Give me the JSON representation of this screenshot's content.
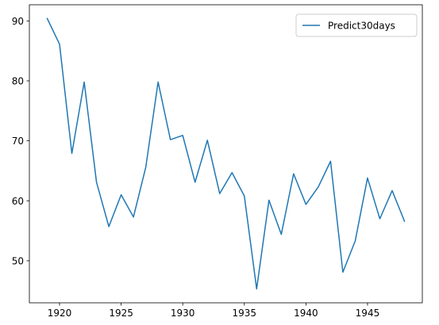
{
  "chart_data": {
    "type": "line",
    "title": "",
    "xlabel": "",
    "ylabel": "",
    "xlim": [
      1917.55,
      1949.45
    ],
    "ylim": [
      42.99,
      92.69
    ],
    "x_ticks": [
      1920,
      1925,
      1930,
      1935,
      1940,
      1945
    ],
    "y_ticks": [
      50,
      60,
      70,
      80,
      90
    ],
    "grid": false,
    "legend": {
      "position": "top-right"
    },
    "series": [
      {
        "name": "Predict30days",
        "color": "#1f77b4",
        "x": [
          1919,
          1920,
          1921,
          1922,
          1923,
          1924,
          1925,
          1926,
          1927,
          1928,
          1929,
          1930,
          1931,
          1932,
          1933,
          1934,
          1935,
          1936,
          1937,
          1938,
          1939,
          1940,
          1941,
          1942,
          1943,
          1944,
          1945,
          1946,
          1947,
          1948
        ],
        "values": [
          90.4,
          86.1,
          67.9,
          79.8,
          63.1,
          55.7,
          61.0,
          57.3,
          65.6,
          79.8,
          70.2,
          70.9,
          63.1,
          70.1,
          61.2,
          64.7,
          60.8,
          45.3,
          60.1,
          54.4,
          64.5,
          59.4,
          62.3,
          66.6,
          48.1,
          53.3,
          63.8,
          57.0,
          61.7,
          56.6
        ]
      }
    ]
  }
}
